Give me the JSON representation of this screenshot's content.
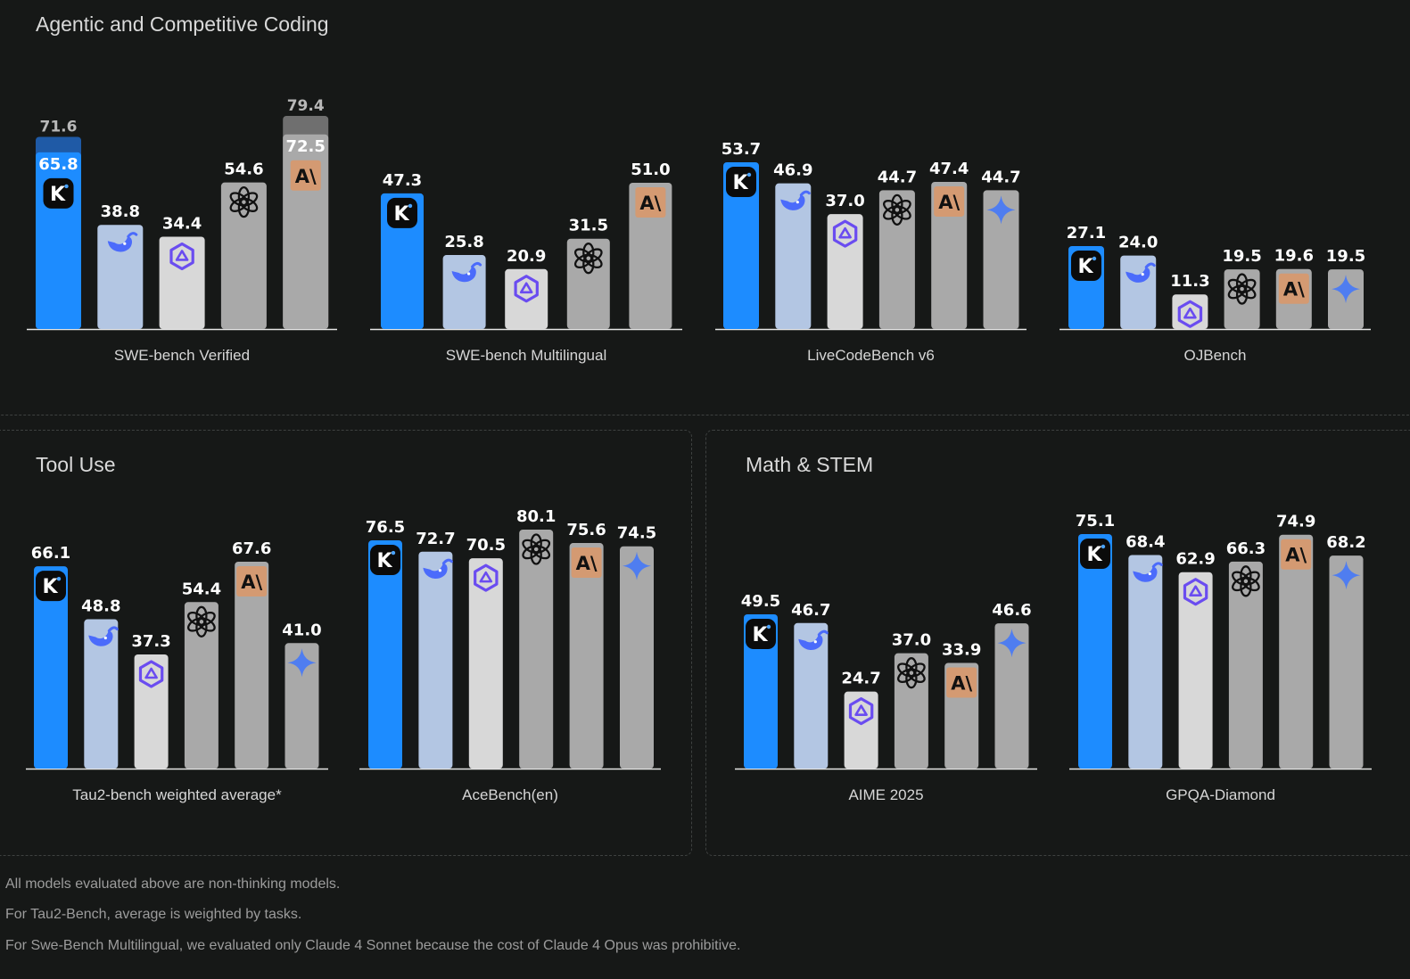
{
  "sections": {
    "coding": "Agentic and Competitive Coding",
    "tool": "Tool Use",
    "math": "Math & STEM"
  },
  "colors": {
    "kimi": "#1d8cff",
    "deepseek": "#b3c6e3",
    "qwen": "#d8d8d8",
    "gpt": "#a9a9a9",
    "claude": "#a9a9a9",
    "gemini": "#a9a9a9",
    "claude_icon_bg": "#d49a72",
    "background": "#161817"
  },
  "models": [
    "kimi",
    "deepseek",
    "qwen",
    "gpt",
    "claude",
    "gemini"
  ],
  "chart_data": [
    {
      "type": "bar",
      "title": "SWE-bench Verified",
      "categories": [
        "kimi",
        "deepseek",
        "qwen",
        "gpt",
        "claude"
      ],
      "values": [
        65.8,
        38.8,
        34.4,
        54.6,
        72.5
      ],
      "extended": [
        71.6,
        null,
        null,
        null,
        79.4
      ],
      "ylim": [
        0,
        90
      ]
    },
    {
      "type": "bar",
      "title": "SWE-bench Multilingual",
      "categories": [
        "kimi",
        "deepseek",
        "qwen",
        "gpt",
        "claude"
      ],
      "values": [
        47.3,
        25.8,
        20.9,
        31.5,
        51.0
      ],
      "ylim": [
        0,
        65
      ]
    },
    {
      "type": "bar",
      "title": "LiveCodeBench v6",
      "categories": [
        "kimi",
        "deepseek",
        "qwen",
        "gpt",
        "claude",
        "gemini"
      ],
      "values": [
        53.7,
        46.9,
        37.0,
        44.7,
        47.4,
        44.7
      ],
      "ylim": [
        0,
        66
      ]
    },
    {
      "type": "bar",
      "title": "OJBench",
      "categories": [
        "kimi",
        "deepseek",
        "qwen",
        "gpt",
        "claude",
        "gemini"
      ],
      "values": [
        27.1,
        24.0,
        11.3,
        19.5,
        19.6,
        19.5
      ],
      "ylim": [
        0,
        38
      ]
    },
    {
      "type": "bar",
      "title": "Tau2-bench weighted average*",
      "categories": [
        "kimi",
        "deepseek",
        "qwen",
        "gpt",
        "claude",
        "gemini"
      ],
      "values": [
        66.1,
        48.8,
        37.3,
        54.4,
        67.6,
        41.0
      ],
      "ylim": [
        0,
        83
      ]
    },
    {
      "type": "bar",
      "title": "AceBench(en)",
      "categories": [
        "kimi",
        "deepseek",
        "qwen",
        "gpt",
        "claude",
        "gemini"
      ],
      "values": [
        76.5,
        72.7,
        70.5,
        80.1,
        75.6,
        74.5
      ],
      "ylim": [
        0,
        91
      ]
    },
    {
      "type": "bar",
      "title": "AIME 2025",
      "categories": [
        "kimi",
        "deepseek",
        "qwen",
        "gpt",
        "claude",
        "gemini"
      ],
      "values": [
        49.5,
        46.7,
        24.7,
        37.0,
        33.9,
        46.6
      ],
      "ylim": [
        0,
        85
      ]
    },
    {
      "type": "bar",
      "title": "GPQA-Diamond",
      "categories": [
        "kimi",
        "deepseek",
        "qwen",
        "gpt",
        "claude",
        "gemini"
      ],
      "values": [
        75.1,
        68.4,
        62.9,
        66.3,
        74.9,
        68.2
      ],
      "ylim": [
        0,
        89
      ]
    }
  ],
  "notes": [
    "All models evaluated above are non-thinking models.",
    "For Tau2-Bench, average is weighted by tasks.",
    "For Swe-Bench Multilingual, we evaluated only Claude 4 Sonnet because the cost of Claude 4 Opus was prohibitive."
  ]
}
